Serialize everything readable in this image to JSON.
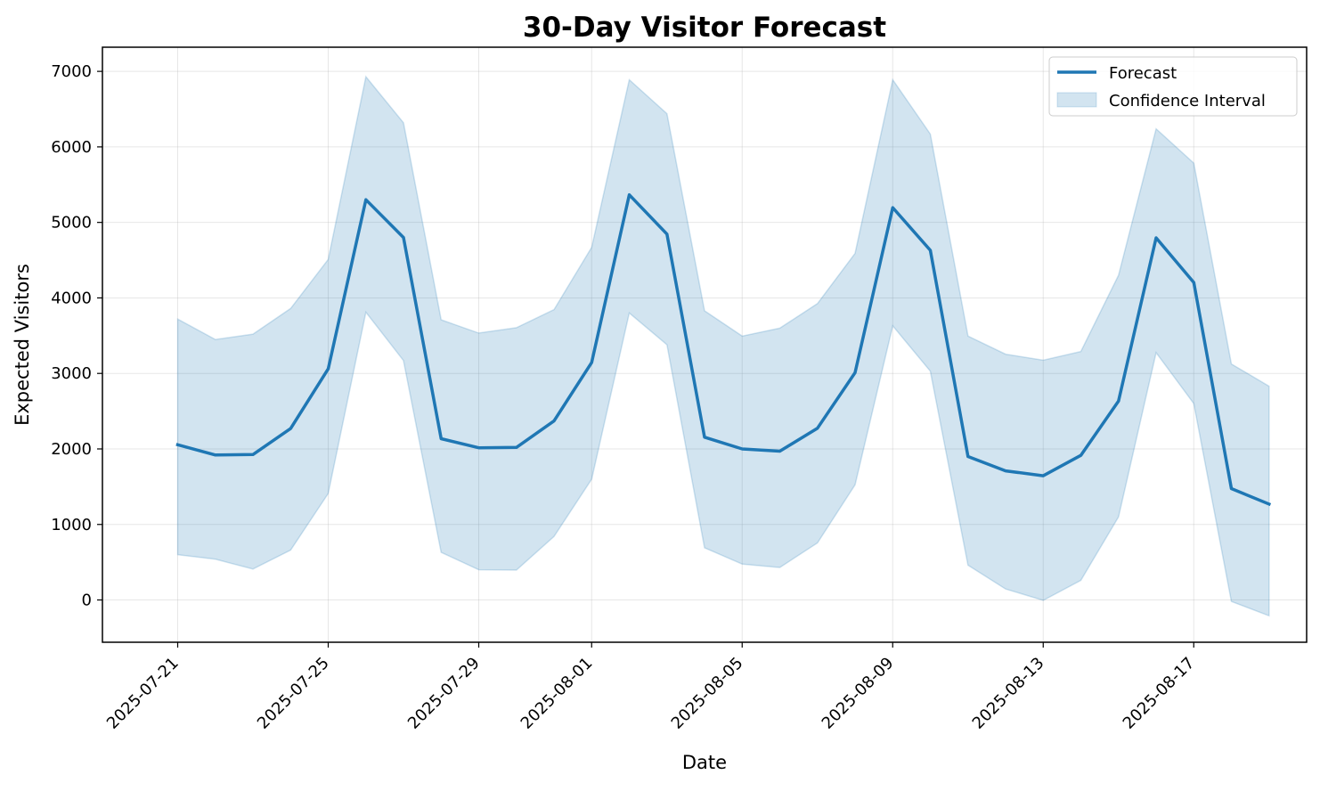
{
  "chart_data": {
    "type": "line",
    "title": "30-Day Visitor Forecast",
    "xlabel": "Date",
    "ylabel": "Expected Visitors",
    "x": [
      "2025-07-21",
      "2025-07-22",
      "2025-07-23",
      "2025-07-24",
      "2025-07-25",
      "2025-07-26",
      "2025-07-27",
      "2025-07-28",
      "2025-07-29",
      "2025-07-30",
      "2025-07-31",
      "2025-08-01",
      "2025-08-02",
      "2025-08-03",
      "2025-08-04",
      "2025-08-05",
      "2025-08-06",
      "2025-08-07",
      "2025-08-08",
      "2025-08-09",
      "2025-08-10",
      "2025-08-11",
      "2025-08-12",
      "2025-08-13",
      "2025-08-14",
      "2025-08-15",
      "2025-08-16",
      "2025-08-17",
      "2025-08-18",
      "2025-08-19"
    ],
    "series": [
      {
        "name": "Forecast",
        "type": "line",
        "values": [
          2055,
          1920,
          1925,
          2270,
          3060,
          5300,
          4800,
          2135,
          2015,
          2020,
          2370,
          3145,
          5365,
          4845,
          2155,
          2000,
          1970,
          2275,
          3010,
          5195,
          4630,
          1900,
          1710,
          1645,
          1915,
          2635,
          4795,
          4205,
          1475,
          1270
        ]
      },
      {
        "name": "Confidence Interval",
        "type": "band",
        "lower": [
          600,
          540,
          410,
          660,
          1410,
          3810,
          3170,
          630,
          400,
          395,
          840,
          1600,
          3800,
          3380,
          690,
          475,
          430,
          755,
          1525,
          3630,
          3030,
          460,
          145,
          -5,
          260,
          1100,
          3275,
          2600,
          -20,
          -210
        ],
        "upper": [
          3720,
          3450,
          3520,
          3860,
          4510,
          6930,
          6320,
          3710,
          3535,
          3605,
          3845,
          4670,
          6890,
          6440,
          3830,
          3495,
          3600,
          3925,
          4590,
          6890,
          6170,
          3495,
          3255,
          3175,
          3290,
          4300,
          6240,
          5785,
          3125,
          2830
        ]
      }
    ],
    "xticks": [
      "2025-07-21",
      "2025-07-25",
      "2025-07-29",
      "2025-08-01",
      "2025-08-05",
      "2025-08-09",
      "2025-08-13",
      "2025-08-17"
    ],
    "yticks": [
      0,
      1000,
      2000,
      3000,
      4000,
      5000,
      6000,
      7000
    ],
    "ylim": [
      -560,
      7320
    ],
    "xlim": [
      "2025-07-19",
      "2025-08-20"
    ],
    "grid": true,
    "legend": {
      "position": "top-right",
      "entries": [
        "Forecast",
        "Confidence Interval"
      ]
    },
    "colors": {
      "line": "#1f77b4",
      "band": "#1f77b4"
    }
  }
}
